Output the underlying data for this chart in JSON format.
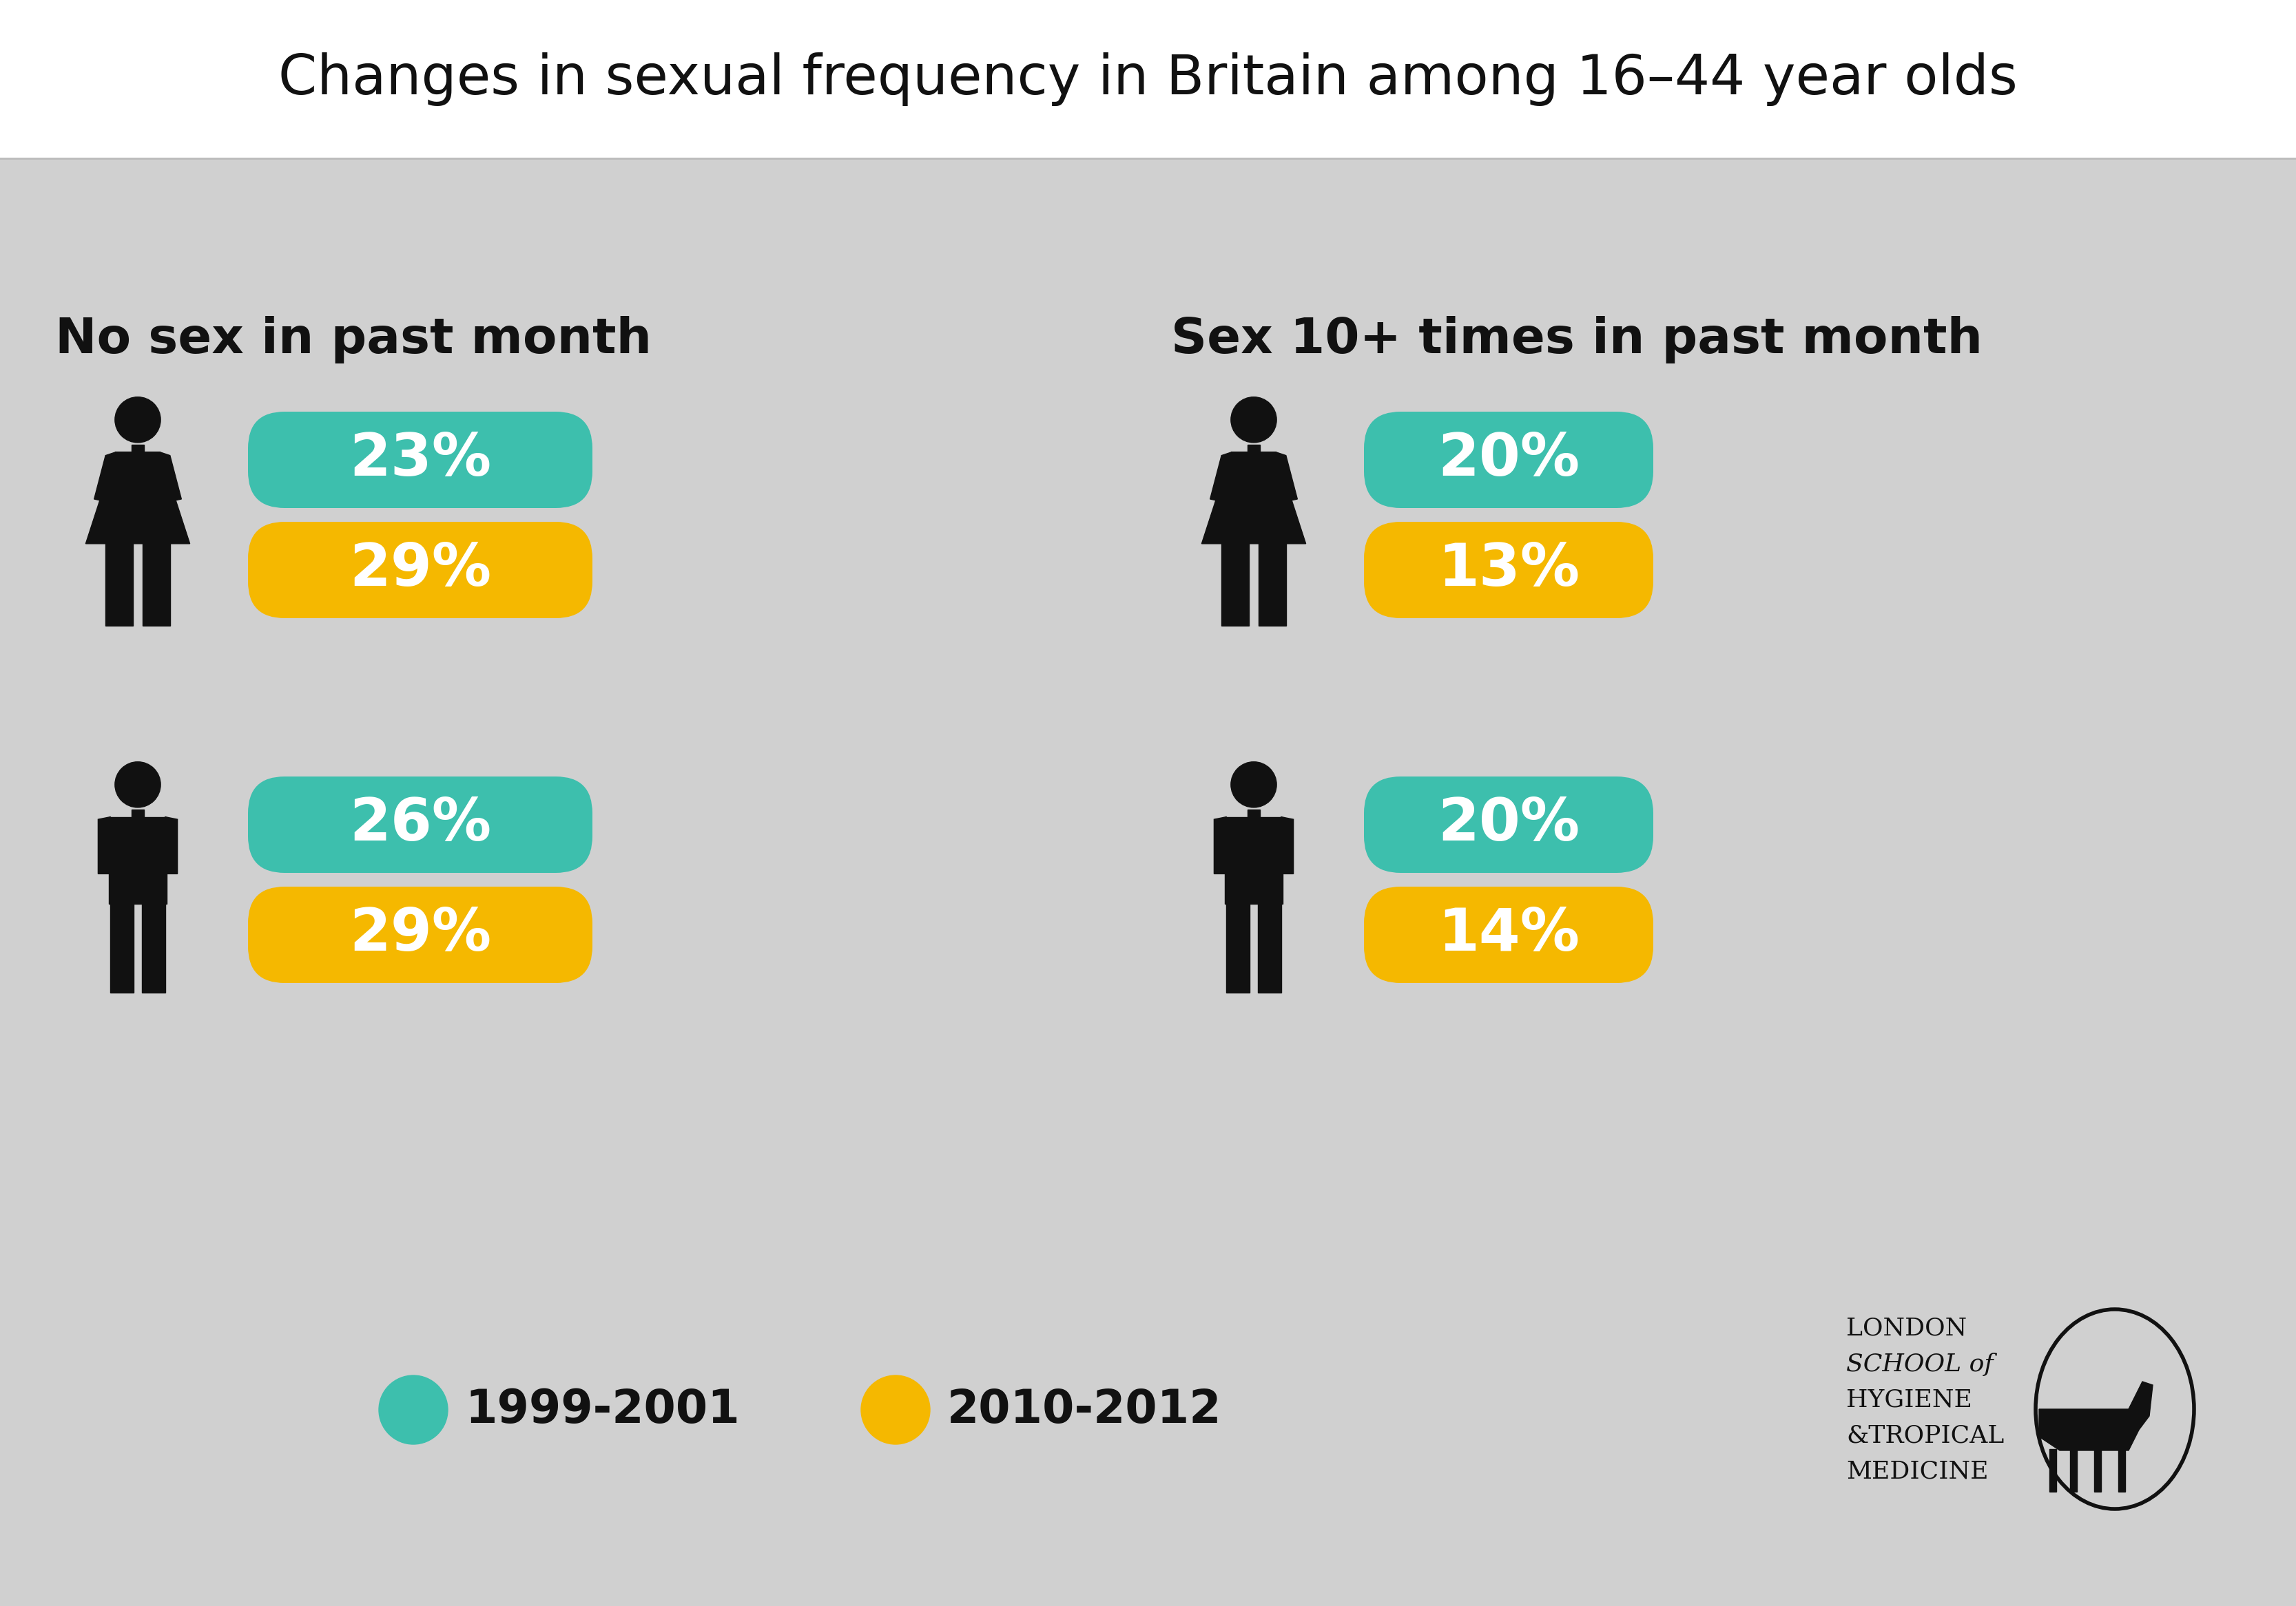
{
  "title": "Changes in sexual frequency in Britain among 16–44 year olds",
  "title_fontsize": 58,
  "background_main": "#d0d0d0",
  "background_top": "#ffffff",
  "teal_color": "#3dbfad",
  "gold_color": "#f5b800",
  "text_color_black": "#111111",
  "left_section_title": "No sex in past month",
  "right_section_title": "Sex 10+ times in past month",
  "section_title_fontsize": 52,
  "pct_fontsize": 62,
  "legend_label_1": "1999-2001",
  "legend_label_2": "2010-2012",
  "legend_fontsize": 48,
  "logo_lines": [
    "LONDON",
    "SCHOOL of",
    "HYGIENE",
    "&TROPICAL",
    "MEDICINE"
  ],
  "logo_fontsize": 26,
  "data": {
    "left": {
      "female": [
        "23%",
        "29%"
      ],
      "male": [
        "26%",
        "29%"
      ]
    },
    "right": {
      "female": [
        "20%",
        "13%"
      ],
      "male": [
        "20%",
        "14%"
      ]
    }
  }
}
